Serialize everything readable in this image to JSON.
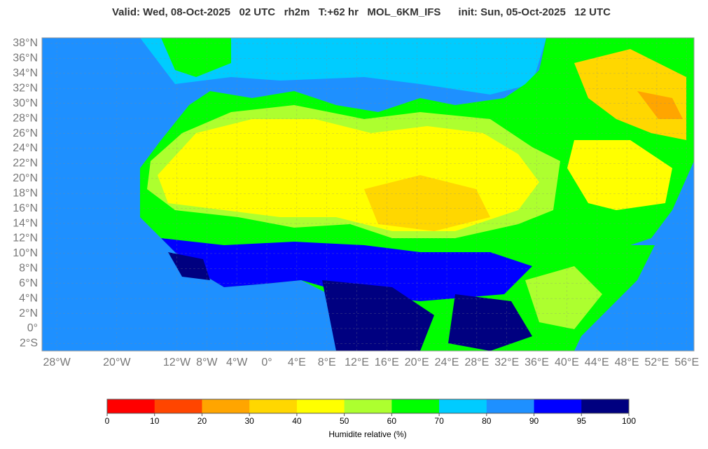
{
  "title": "Valid: Wed, 08-Oct-2025   02 UTC   rh2m   T:+62 hr   MOL_6KM_IFS      init: Sun, 05-Oct-2025   12 UTC",
  "map": {
    "lat_ticks": [
      {
        "value": 38,
        "label": "38°N"
      },
      {
        "value": 36,
        "label": "36°N"
      },
      {
        "value": 34,
        "label": "34°N"
      },
      {
        "value": 32,
        "label": "32°N"
      },
      {
        "value": 30,
        "label": "30°N"
      },
      {
        "value": 28,
        "label": "28°N"
      },
      {
        "value": 26,
        "label": "26°N"
      },
      {
        "value": 24,
        "label": "24°N"
      },
      {
        "value": 22,
        "label": "22°N"
      },
      {
        "value": 20,
        "label": "20°N"
      },
      {
        "value": 18,
        "label": "18°N"
      },
      {
        "value": 16,
        "label": "16°N"
      },
      {
        "value": 14,
        "label": "14°N"
      },
      {
        "value": 12,
        "label": "12°N"
      },
      {
        "value": 10,
        "label": "10°N"
      },
      {
        "value": 8,
        "label": "8°N"
      },
      {
        "value": 6,
        "label": "6°N"
      },
      {
        "value": 4,
        "label": "4°N"
      },
      {
        "value": 2,
        "label": "2°N"
      },
      {
        "value": 0,
        "label": "0°"
      },
      {
        "value": -2,
        "label": "2°S"
      }
    ],
    "lon_ticks": [
      {
        "value": -28,
        "label": "28°W"
      },
      {
        "value": -20,
        "label": "20°W"
      },
      {
        "value": -12,
        "label": "12°W"
      },
      {
        "value": -8,
        "label": "8°W"
      },
      {
        "value": -4,
        "label": "4°W"
      },
      {
        "value": 0,
        "label": "0°"
      },
      {
        "value": 4,
        "label": "4°E"
      },
      {
        "value": 8,
        "label": "8°E"
      },
      {
        "value": 12,
        "label": "12°E"
      },
      {
        "value": 16,
        "label": "16°E"
      },
      {
        "value": 20,
        "label": "20°E"
      },
      {
        "value": 24,
        "label": "24°E"
      },
      {
        "value": 28,
        "label": "28°E"
      },
      {
        "value": 32,
        "label": "32°E"
      },
      {
        "value": 36,
        "label": "36°E"
      },
      {
        "value": 40,
        "label": "40°E"
      },
      {
        "value": 44,
        "label": "44°E"
      },
      {
        "value": 48,
        "label": "48°E"
      },
      {
        "value": 52,
        "label": "52°E"
      },
      {
        "value": 56,
        "label": "56°E"
      }
    ]
  },
  "colorbar": {
    "label": "Humidite relative (%)",
    "bins": [
      0,
      10,
      20,
      30,
      40,
      50,
      60,
      70,
      80,
      90,
      95,
      100
    ],
    "colors": [
      "#ff0000",
      "#ff4500",
      "#ffa500",
      "#ffd700",
      "#ffff00",
      "#adff2f",
      "#00ff00",
      "#00ccff",
      "#1e90ff",
      "#0000ff",
      "#000080"
    ]
  }
}
